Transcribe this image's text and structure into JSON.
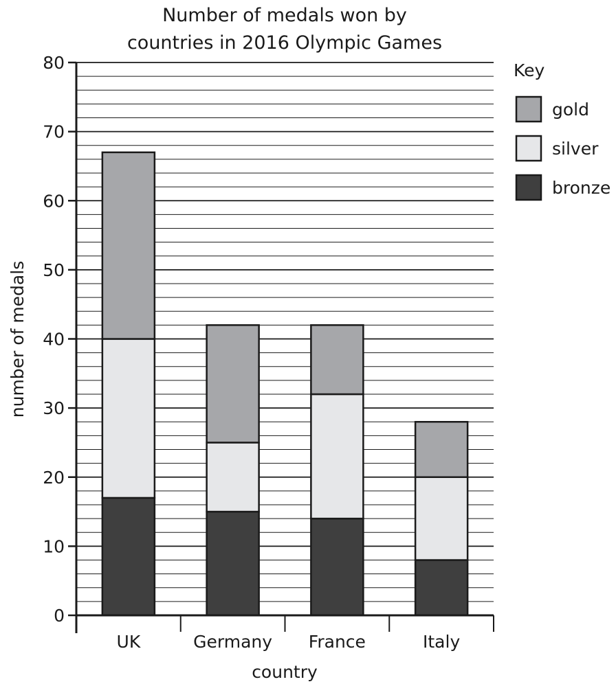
{
  "chart_data": {
    "type": "bar",
    "stacked": true,
    "title": "Number of medals won by countries in 2016 Olympic Games",
    "title_lines": [
      "Number of medals won by",
      "countries in 2016 Olympic Games"
    ],
    "xlabel": "country",
    "ylabel": "number of medals",
    "categories": [
      "UK",
      "Germany",
      "France",
      "Italy"
    ],
    "series": [
      {
        "name": "bronze",
        "values": [
          17,
          15,
          14,
          8
        ],
        "color": "#3f3f3f"
      },
      {
        "name": "silver",
        "values": [
          23,
          10,
          18,
          12
        ],
        "color": "#e6e7e9"
      },
      {
        "name": "gold",
        "values": [
          27,
          17,
          10,
          8
        ],
        "color": "#a6a7aa"
      }
    ],
    "totals": [
      67,
      42,
      42,
      28
    ],
    "ylim": [
      0,
      80
    ],
    "yticks": [
      0,
      10,
      20,
      30,
      40,
      50,
      60,
      70,
      80
    ],
    "minor_grid_step": 2,
    "grid": true,
    "legend": {
      "title": "Key",
      "placement": "right",
      "order": [
        "gold",
        "silver",
        "bronze"
      ]
    }
  }
}
